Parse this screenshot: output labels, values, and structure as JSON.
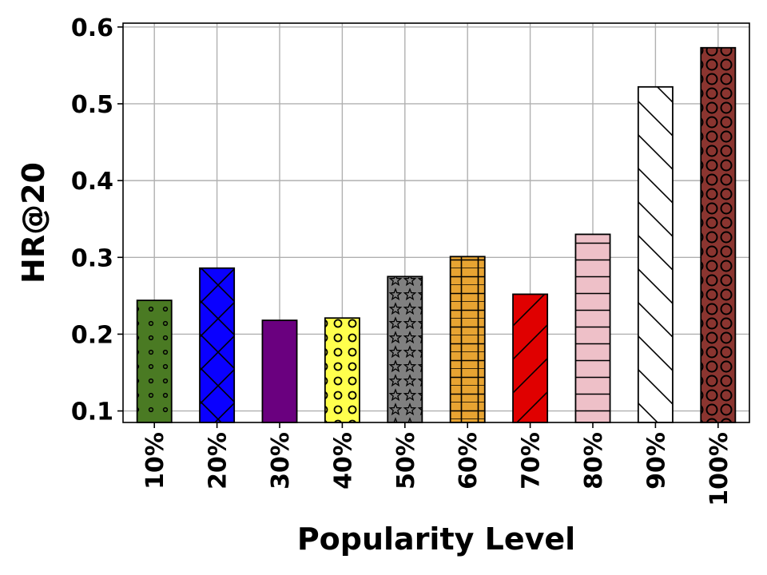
{
  "chart_data": {
    "type": "bar",
    "title": "",
    "xlabel": "Popularity Level",
    "ylabel": "HR@20",
    "categories": [
      "10%",
      "20%",
      "30%",
      "40%",
      "50%",
      "60%",
      "70%",
      "80%",
      "90%",
      "100%"
    ],
    "values": [
      0.244,
      0.286,
      0.218,
      0.221,
      0.275,
      0.301,
      0.252,
      0.33,
      0.522,
      0.573
    ],
    "ylim": [
      0.085,
      0.605
    ],
    "yticks": [
      "0.1",
      "0.2",
      "0.3",
      "0.4",
      "0.5",
      "0.6"
    ],
    "grid": true,
    "bar_colors": [
      "#4a7a23",
      "#0a00ff",
      "#6a007f",
      "#ffff4d",
      "#808080",
      "#e8a432",
      "#e00000",
      "#eec0c8",
      "#ffffff",
      "#8b3530"
    ],
    "bar_patterns": [
      "small-dots",
      "cross-hatch",
      "none",
      "circles",
      "stars",
      "grid",
      "forward-slash",
      "horizontal-lines",
      "back-slash",
      "large-circles"
    ]
  }
}
